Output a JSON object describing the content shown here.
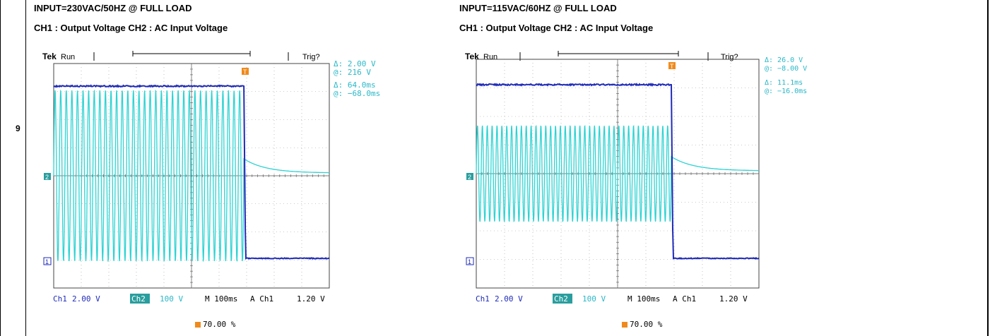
{
  "row_number": "9",
  "panels": [
    {
      "input": "INPUT=230VAC/50HZ @ FULL LOAD",
      "channels": "CH1 : Output Voltage CH2 : AC Input Voltage",
      "brand": "Tek",
      "state": "Run",
      "trig": "Trig?",
      "readout": [
        "Δ:   2.00 V",
        "@:   216 V",
        "Δ:  64.0ms",
        "@: −68.0ms"
      ],
      "ch1_label": "Ch1",
      "ch1_scale": "2.00 V",
      "ch2_label": "Ch2",
      "ch2_scale": "100 V",
      "timebase": "M 100ms",
      "trigger_src": "A  Ch1",
      "trigger_level": "1.20 V",
      "trigger_pos": "70.00 %",
      "marker1": "1",
      "marker2": "2",
      "marker_t": "T"
    },
    {
      "input": "INPUT=115VAC/60HZ @ FULL LOAD",
      "channels": "CH1 : Output Voltage CH2 : AC Input Voltage",
      "brand": "Tek",
      "state": "Run",
      "trig": "Trig?",
      "readout": [
        "Δ:  26.0 V",
        "@:  −8.00 V",
        "Δ:  11.1ms",
        "@: −16.0ms"
      ],
      "ch1_label": "Ch1",
      "ch1_scale": "2.00 V",
      "ch2_label": "Ch2",
      "ch2_scale": "100 V",
      "timebase": "M 100ms",
      "trigger_src": "A  Ch1",
      "trigger_level": "1.20 V",
      "trigger_pos": "70.00 %",
      "marker1": "1",
      "marker2": "2",
      "marker_t": "T"
    }
  ],
  "colors": {
    "ch1": "#1f2bb8",
    "ch2": "#2ed3d3",
    "trigger": "#f08a1c",
    "grid": "#555555"
  }
}
